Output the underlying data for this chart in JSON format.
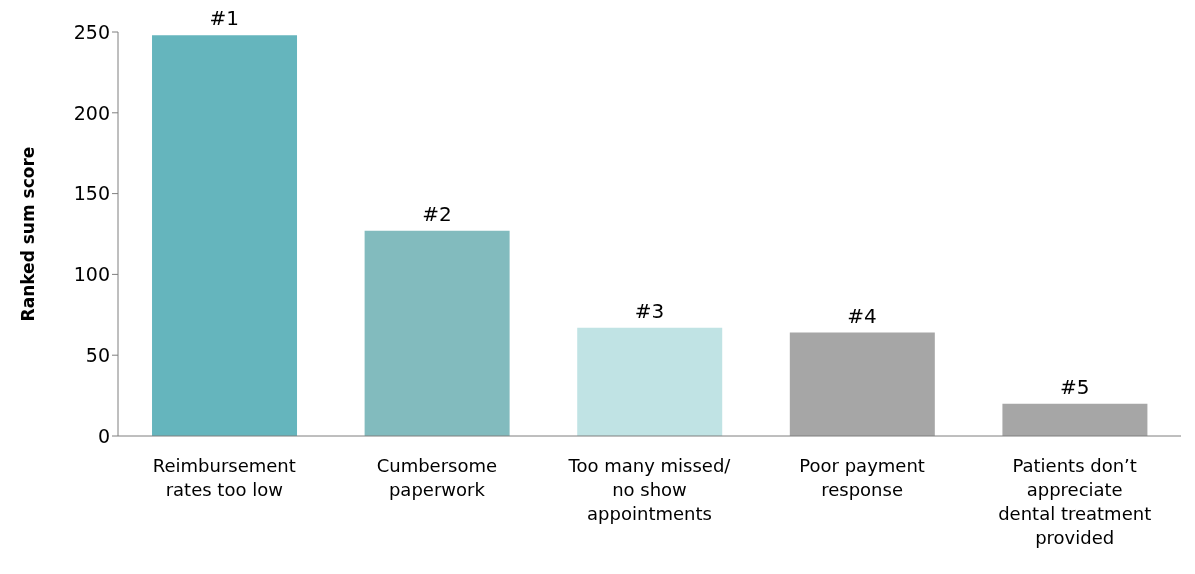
{
  "chart_data": {
    "type": "bar",
    "ylabel": "Ranked sum score",
    "categories": [
      "Reimbursement rates too low",
      "Cumbersome paperwork",
      "Too many missed/ no show appointments",
      "Poor payment response",
      "Patients don’t appreciate dental treatment provided"
    ],
    "values": [
      248,
      127,
      67,
      64,
      20
    ],
    "colors": [
      "#65b5bd",
      "#82bbbe",
      "#c0e3e4",
      "#a6a6a6",
      "#a6a6a6"
    ],
    "annotations": [
      {
        "text": "#1",
        "x": "Reimbursement rates too low",
        "y": 248
      },
      {
        "text": "#2",
        "x": "Cumbersome paperwork",
        "y": 127
      },
      {
        "text": "#3",
        "x": "Too many missed/ no show appointments",
        "y": 67
      },
      {
        "text": "#4",
        "x": "Poor payment response",
        "y": 64
      },
      {
        "text": "#5",
        "x": "Patients don’t appreciate dental treatment provided",
        "y": 20
      }
    ],
    "ylim": [
      0,
      250
    ],
    "yticks": [
      0,
      50,
      100,
      150,
      200,
      250
    ],
    "grid": false,
    "legend": false
  }
}
